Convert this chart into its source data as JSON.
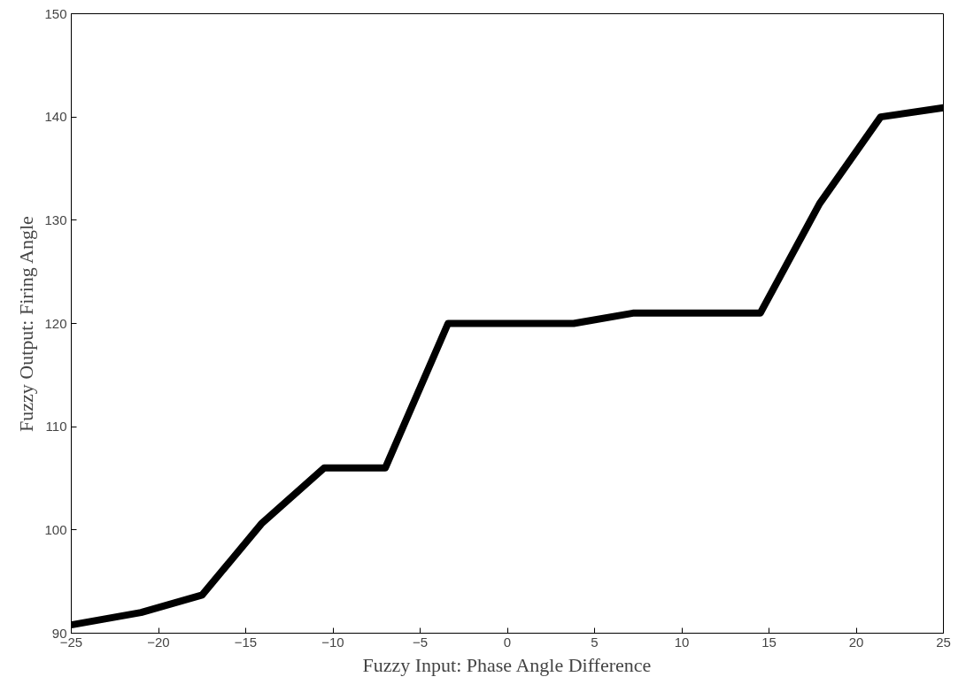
{
  "chart_data": {
    "type": "line",
    "xlabel": "Fuzzy Input: Phase Angle Difference",
    "ylabel": "Fuzzy Output: Firing Angle",
    "x": [
      -25,
      -21,
      -17.5,
      -14.1,
      -10.5,
      -7,
      -3.4,
      3.8,
      7.2,
      14.5,
      17.9,
      21.4,
      25
    ],
    "series": [
      {
        "color": "#000000",
        "values": [
          90.8,
          92,
          93.7,
          100.6,
          106,
          106,
          120,
          120,
          121,
          121,
          131.6,
          140,
          140.9
        ]
      }
    ],
    "xlim": [
      -25,
      25
    ],
    "xticks": [
      -25,
      -20,
      -15,
      -10,
      -5,
      0,
      5,
      10,
      15,
      20,
      25
    ],
    "ylim": [
      90,
      150
    ],
    "yticks": [
      90,
      100,
      110,
      120,
      130,
      140,
      150
    ],
    "grid": false,
    "marker": "none",
    "line_style": "solid"
  }
}
